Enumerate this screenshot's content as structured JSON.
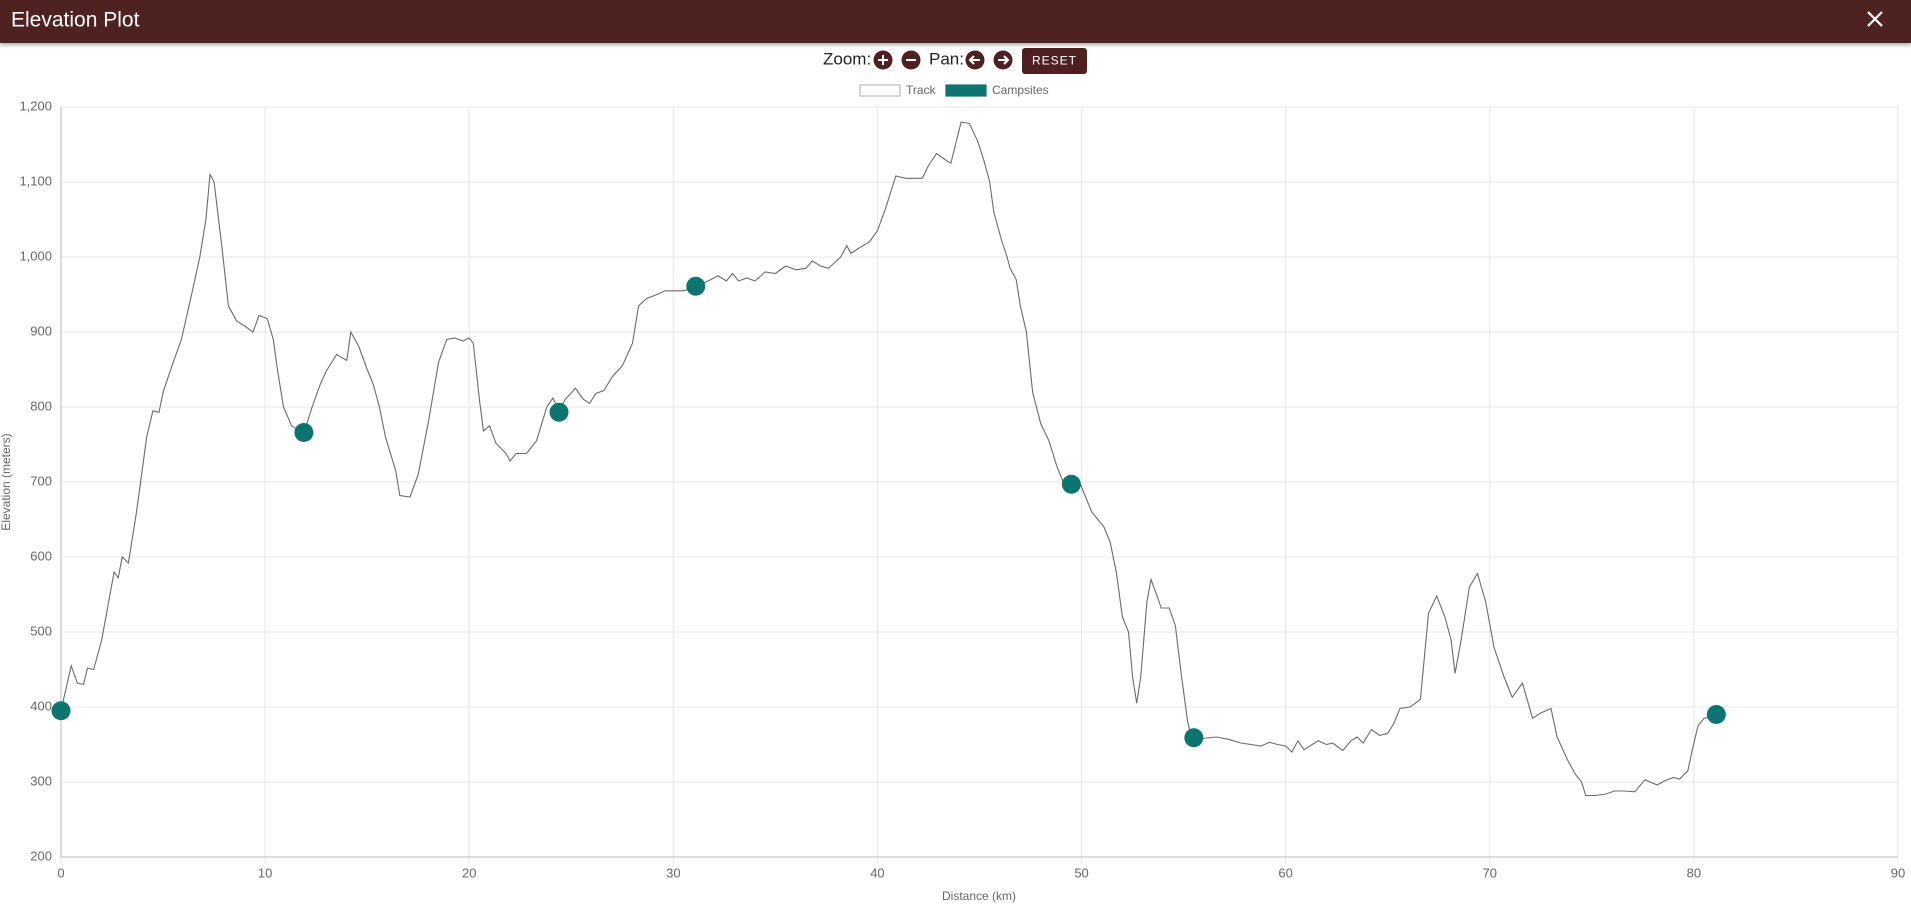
{
  "header": {
    "title": "Elevation Plot"
  },
  "controls": {
    "zoom_label": "Zoom:",
    "pan_label": "Pan:",
    "reset": "RESET"
  },
  "chart_data": {
    "type": "line",
    "x_label": "Distance (km)",
    "y_label": "Elevation (meters)",
    "xlim": [
      0,
      90
    ],
    "xticks": [
      0,
      10,
      20,
      30,
      40,
      50,
      60,
      70,
      80,
      90
    ],
    "ylim": [
      200,
      1200
    ],
    "yticks": [
      200,
      300,
      400,
      500,
      600,
      700,
      800,
      900,
      {
        "value": 1000,
        "label": "1,000"
      },
      {
        "value": 1100,
        "label": "1,100"
      },
      {
        "value": 1200,
        "label": "1,200"
      }
    ],
    "grid": true,
    "series": [
      {
        "name": "Track",
        "type": "line",
        "color": "#6b6b6b",
        "x": [
          0,
          0.5,
          0.8,
          1.1,
          1.3,
          1.6,
          2.0,
          2.4,
          2.6,
          2.8,
          3.0,
          3.3,
          3.7,
          4.2,
          4.5,
          4.8,
          5.0,
          5.5,
          5.9,
          6.4,
          6.8,
          7.1,
          7.3,
          7.5,
          7.9,
          8.2,
          8.6,
          9.0,
          9.4,
          9.7,
          10.1,
          10.4,
          10.6,
          10.9,
          11.3,
          11.9,
          12.3,
          12.7,
          13.0,
          13.5,
          14.0,
          14.2,
          14.6,
          15.0,
          15.3,
          15.6,
          15.9,
          16.4,
          16.6,
          17.1,
          17.5,
          18.0,
          18.5,
          18.9,
          19.3,
          19.7,
          20.0,
          20.2,
          20.5,
          20.7,
          21.0,
          21.3,
          21.8,
          22.0,
          22.3,
          22.8,
          23.3,
          23.8,
          24.1,
          24.4,
          24.7,
          25.2,
          25.6,
          25.9,
          26.2,
          26.6,
          27.0,
          27.5,
          28.0,
          28.3,
          28.7,
          29.2,
          29.6,
          30.0,
          30.5,
          31.1,
          31.7,
          32.2,
          32.6,
          32.9,
          33.2,
          33.6,
          34.0,
          34.5,
          35.0,
          35.5,
          36.0,
          36.5,
          36.8,
          37.2,
          37.6,
          37.8,
          38.2,
          38.5,
          38.7,
          39.1,
          39.6,
          40.0,
          40.4,
          40.9,
          41.4,
          42.2,
          42.5,
          42.9,
          43.3,
          43.6,
          44.1,
          44.5,
          44.9,
          45.2,
          45.5,
          45.7,
          46.1,
          46.3,
          46.5,
          46.8,
          47.0,
          47.3,
          47.6,
          48.0,
          48.4,
          48.8,
          49.1,
          49.5,
          49.9,
          50.2,
          50.5,
          50.8,
          51.1,
          51.4,
          51.7,
          52.0,
          52.3,
          52.5,
          52.7,
          52.9,
          53.2,
          53.4,
          53.7,
          53.9,
          54.3,
          54.6,
          54.9,
          55.2,
          55.4,
          55.9,
          56.6,
          57.2,
          57.8,
          58.3,
          58.8,
          59.2,
          59.6,
          60.0,
          60.3,
          60.6,
          60.9,
          61.3,
          61.6,
          62.0,
          62.3,
          62.8,
          63.2,
          63.5,
          63.8,
          64.2,
          64.6,
          65.0,
          65.3,
          65.6,
          66.1,
          66.6,
          67.0,
          67.4,
          67.8,
          68.1,
          68.3,
          68.6,
          69.0,
          69.4,
          69.8,
          70.2,
          70.7,
          71.1,
          71.6,
          72.1,
          72.5,
          73.0,
          73.3,
          73.8,
          74.2,
          74.5,
          74.7,
          75.2,
          75.7,
          76.1,
          76.6,
          77.1,
          77.6,
          78.2,
          78.6,
          79.0,
          79.3,
          79.7,
          79.9,
          80.2,
          80.5,
          81.1
        ],
        "values": [
          395,
          455,
          432,
          430,
          452,
          450,
          490,
          550,
          580,
          572,
          600,
          592,
          660,
          760,
          795,
          793,
          820,
          860,
          890,
          950,
          1000,
          1050,
          1110,
          1100,
          1010,
          935,
          915,
          908,
          900,
          922,
          918,
          890,
          850,
          800,
          775,
          765,
          800,
          830,
          848,
          870,
          862,
          900,
          880,
          850,
          830,
          800,
          760,
          715,
          682,
          680,
          710,
          780,
          860,
          890,
          892,
          888,
          892,
          885,
          810,
          768,
          775,
          752,
          738,
          728,
          738,
          738,
          755,
          800,
          812,
          795,
          810,
          825,
          810,
          805,
          818,
          822,
          840,
          855,
          885,
          935,
          945,
          950,
          955,
          955,
          955,
          960,
          968,
          975,
          968,
          978,
          968,
          972,
          968,
          980,
          978,
          988,
          983,
          985,
          995,
          988,
          985,
          990,
          1000,
          1015,
          1005,
          1012,
          1020,
          1035,
          1065,
          1108,
          1105,
          1105,
          1122,
          1138,
          1130,
          1125,
          1180,
          1178,
          1155,
          1130,
          1100,
          1060,
          1020,
          1005,
          985,
          970,
          935,
          900,
          820,
          778,
          755,
          720,
          700,
          698,
          700,
          680,
          660,
          650,
          640,
          620,
          580,
          520,
          500,
          440,
          405,
          440,
          540,
          570,
          548,
          532,
          532,
          508,
          440,
          380,
          358,
          358,
          360,
          357,
          352,
          350,
          348,
          353,
          350,
          348,
          340,
          355,
          343,
          350,
          355,
          350,
          352,
          342,
          355,
          360,
          352,
          370,
          362,
          365,
          378,
          398,
          400,
          410,
          525,
          548,
          520,
          490,
          445,
          490,
          560,
          578,
          540,
          480,
          440,
          413,
          432,
          385,
          392,
          398,
          360,
          330,
          310,
          300,
          282,
          282,
          284,
          288,
          288,
          287,
          303,
          296,
          302,
          306,
          304,
          315,
          340,
          375,
          385,
          388
        ]
      },
      {
        "name": "Campsites",
        "type": "scatter",
        "color": "#0e7470",
        "x": [
          0,
          11.9,
          24.4,
          31.1,
          49.5,
          55.5,
          81.1
        ],
        "values": [
          395,
          766,
          793,
          961,
          697,
          359,
          390
        ]
      }
    ]
  }
}
